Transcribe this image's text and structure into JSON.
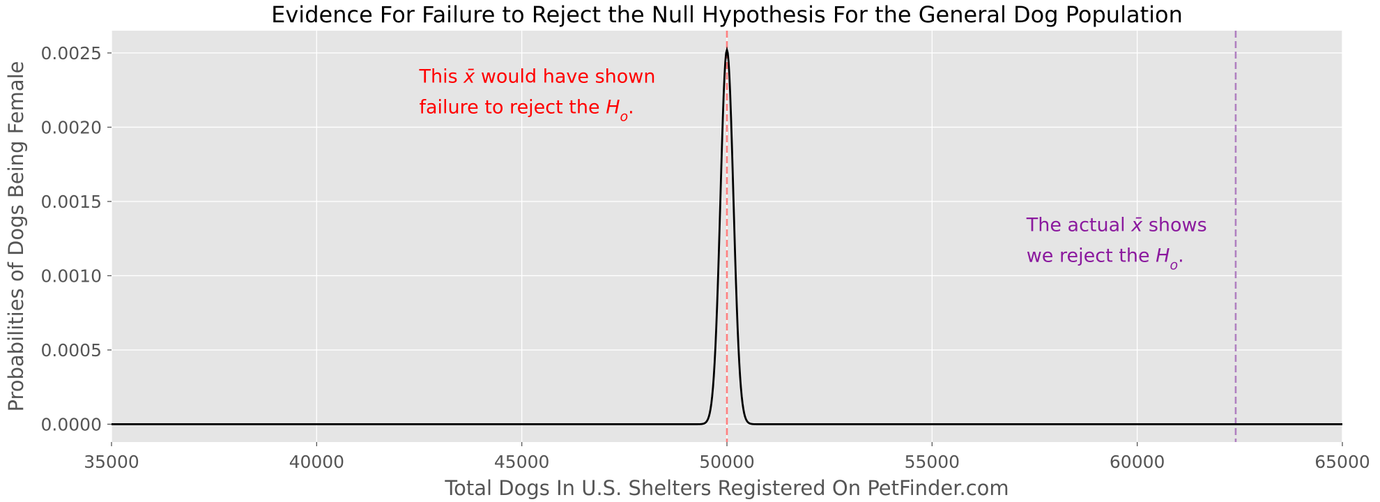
{
  "chart_data": {
    "type": "line",
    "title": "Evidence For Failure to Reject the Null Hypothesis For the General Dog Population",
    "xlabel": "Total Dogs In U.S. Shelters Registered On PetFinder.com",
    "ylabel": "Probabilities of Dogs Being Female",
    "xlim": [
      35000,
      65000
    ],
    "ylim": [
      -0.00012,
      0.00265
    ],
    "xticks": [
      "35000",
      "40000",
      "45000",
      "50000",
      "55000",
      "60000",
      "65000"
    ],
    "yticks": [
      "0.0000",
      "0.0005",
      "0.0010",
      "0.0015",
      "0.0020",
      "0.0025"
    ],
    "grid": true,
    "style": "ggplot",
    "series": [
      {
        "kind": "normal-pdf",
        "mean": 50000,
        "sd": 158,
        "peak": 0.00252,
        "color": "#000000"
      }
    ],
    "vlines": [
      {
        "x": 50000,
        "color": "#ff8080",
        "linestyle": "dashed"
      },
      {
        "x": 62400,
        "color": "#b080c0",
        "linestyle": "dashed"
      }
    ],
    "annotations": [
      {
        "lines": [
          [
            "This ",
            "x̄",
            " would have shown"
          ],
          [
            "failure to reject the ",
            "H",
            "o",
            "."
          ]
        ],
        "x": 42500,
        "y": 0.0023,
        "color": "#ff0000"
      },
      {
        "lines": [
          [
            "The actual ",
            "x̄",
            " shows"
          ],
          [
            "we reject the ",
            "H",
            "o",
            "."
          ]
        ],
        "x": 57300,
        "y": 0.0013,
        "color": "#8b1a9e"
      }
    ],
    "colors": {
      "background": "#e5e5e5",
      "grid": "#ffffff",
      "ticks": "#555555"
    }
  }
}
